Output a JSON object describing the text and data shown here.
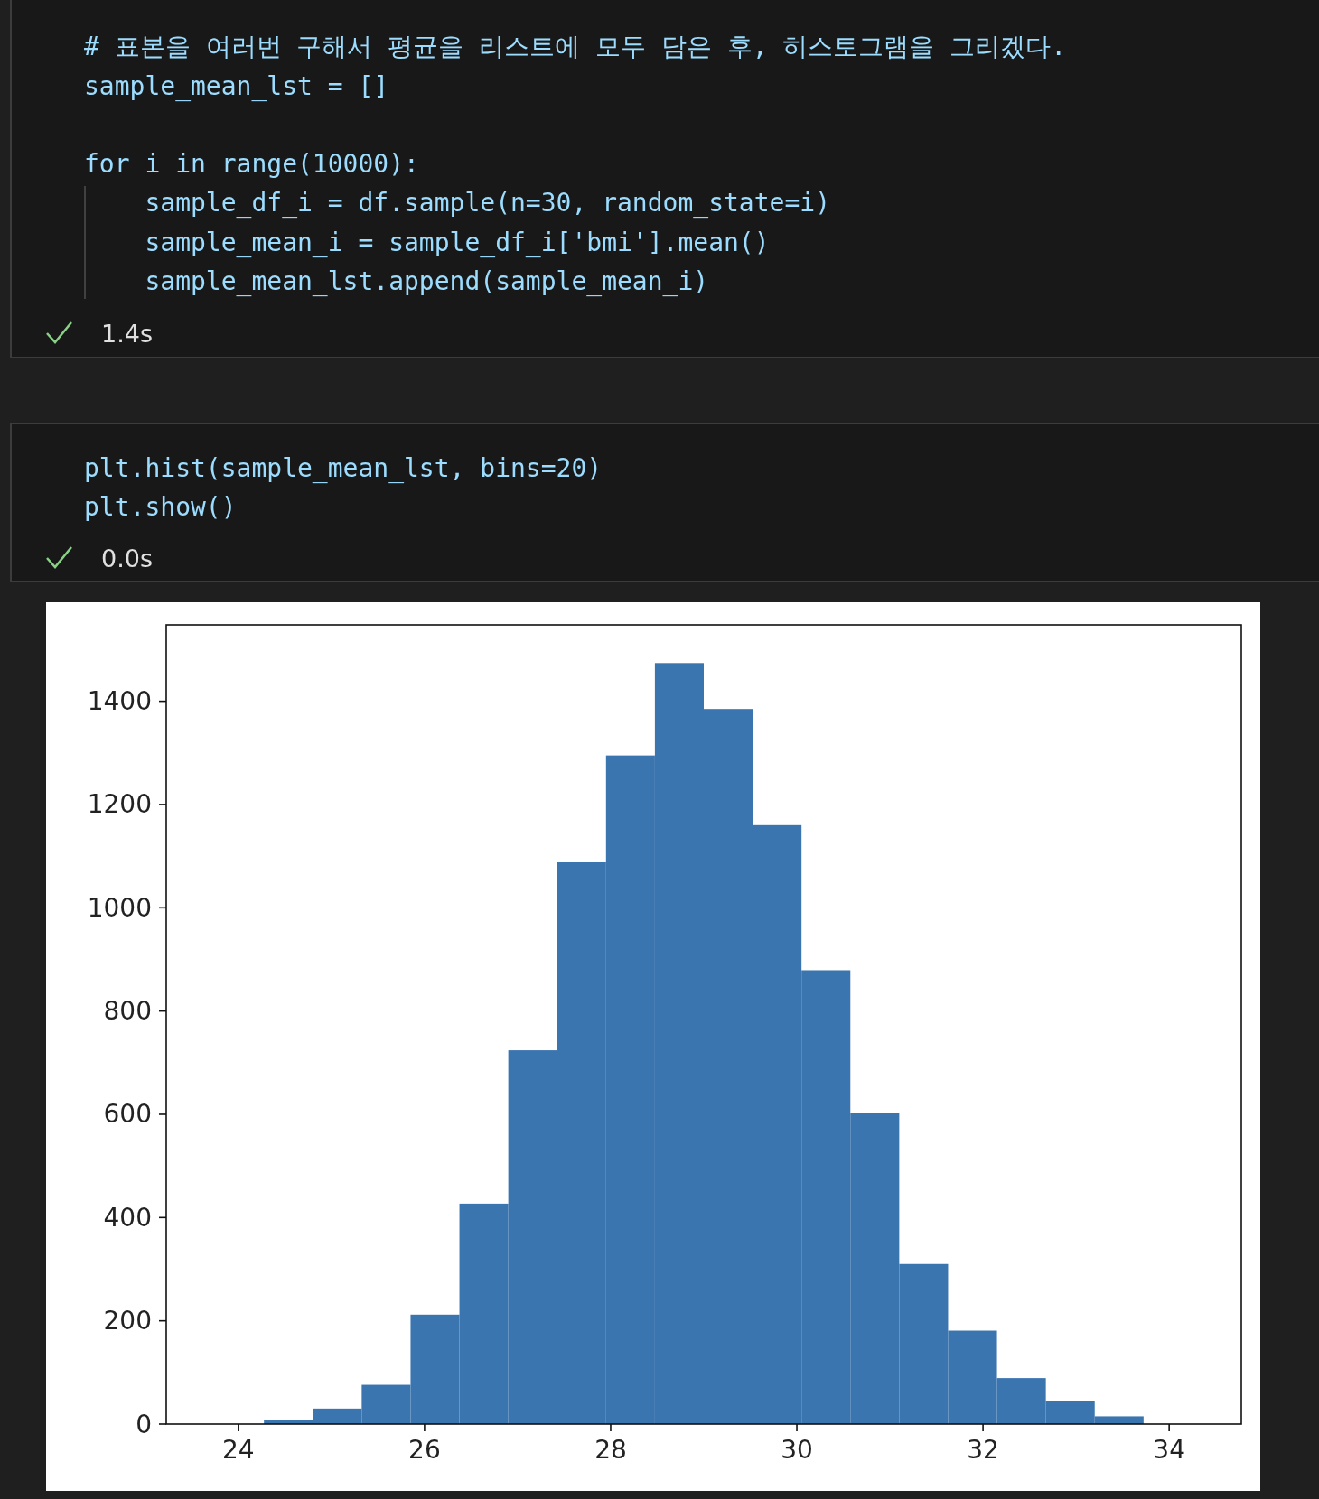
{
  "chart_data": {
    "type": "histogram",
    "bins": [
      24.275,
      24.8,
      25.325,
      25.85,
      26.375,
      26.9,
      27.425,
      27.95,
      28.475,
      29.0,
      29.525,
      30.05,
      30.575,
      31.1,
      31.625,
      32.15,
      32.675,
      33.2,
      33.725
    ],
    "values": [
      8,
      30,
      76,
      212,
      427,
      724,
      1088,
      1295,
      1474,
      1385,
      1160,
      879,
      602,
      310,
      181,
      89,
      44,
      15
    ],
    "color": "#3a75af",
    "xlim": [
      23.225,
      34.775
    ],
    "ylim": [
      0,
      1548
    ],
    "xticks": [
      24,
      26,
      28,
      30,
      32,
      34
    ],
    "yticks": [
      0,
      200,
      400,
      600,
      800,
      1000,
      1200,
      1400
    ],
    "grid": false,
    "annotations": [
      "# 표본을 여러번 구해서 평균을 리스트에 모두 담은 후, 히스토그램을 그리겠다.",
      "sample_mean_lst = []",
      "for i in range(10000):",
      "    sample_df_i = df.sample(n=30, random_state=i)",
      "    sample_mean_i = sample_df_i['bmi'].mean()",
      "    sample_mean_lst.append(sample_mean_i)",
      "1.4s",
      "plt.hist(sample_mean_lst, bins=20)",
      "plt.show()",
      "0.0s"
    ]
  }
}
